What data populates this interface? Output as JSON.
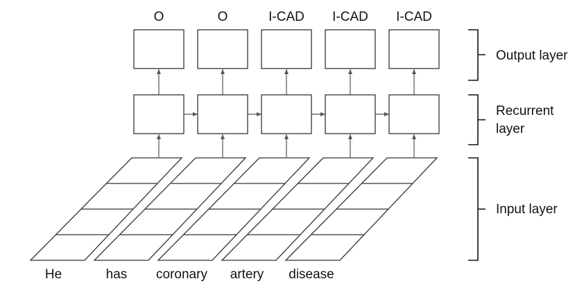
{
  "columns": [
    {
      "word": "He",
      "tag": "O"
    },
    {
      "word": "has",
      "tag": "O"
    },
    {
      "word": "coronary",
      "tag": "I-CAD"
    },
    {
      "word": "artery",
      "tag": "I-CAD"
    },
    {
      "word": "disease",
      "tag": "I-CAD"
    }
  ],
  "layers": {
    "output": {
      "label": "Output layer"
    },
    "recurrent": {
      "label_line1": "Recurrent",
      "label_line2": "layer"
    },
    "input": {
      "label": "Input layer"
    }
  }
}
